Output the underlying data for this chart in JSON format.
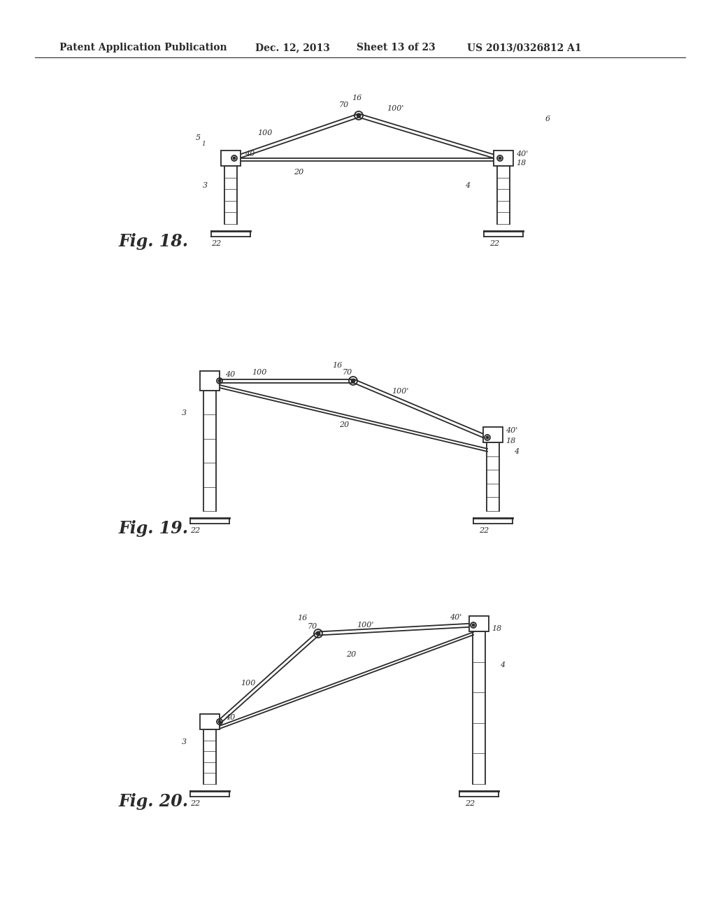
{
  "bg_color": "#ffffff",
  "line_color": "#2a2a2a",
  "header_text": "Patent Application Publication",
  "header_date": "Dec. 12, 2013",
  "header_sheet": "Sheet 13 of 23",
  "header_patent": "US 2013/0326812 A1",
  "fig18_label": "Fig. 18.",
  "fig19_label": "Fig. 19.",
  "fig20_label": "Fig. 20.",
  "lw": 1.3,
  "lw2": 2.0,
  "lw3": 0.8
}
